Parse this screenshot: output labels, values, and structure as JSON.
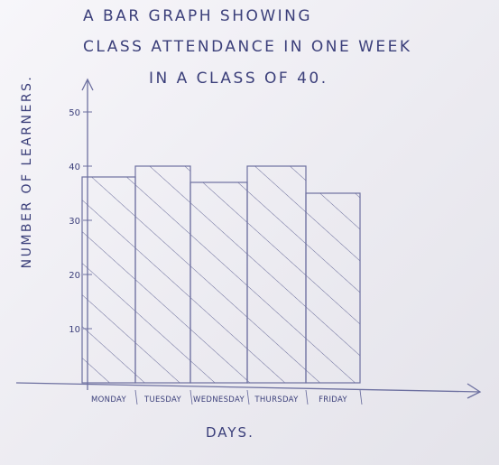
{
  "chart_data": {
    "type": "bar",
    "title": [
      "A BAR GRAPH SHOWING",
      "CLASS ATTENDANCE IN ONE WEEK",
      "IN A CLASS OF 40."
    ],
    "xlabel": "DAYS.",
    "ylabel": "NUMBER OF LEARNERS.",
    "categories": [
      "MONDAY",
      "TUESDAY",
      "WEDNESDAY",
      "THURSDAY",
      "FRIDAY"
    ],
    "values": [
      38,
      40,
      37,
      40,
      35
    ],
    "y_ticks": [
      "10",
      "20",
      "30",
      "40",
      "50"
    ],
    "ylim": [
      0,
      60
    ],
    "grid": false,
    "legend": "none",
    "colors": {
      "ink": "#3b3f7a",
      "axis": "#6d70a0",
      "paper": "#efeef3"
    }
  }
}
